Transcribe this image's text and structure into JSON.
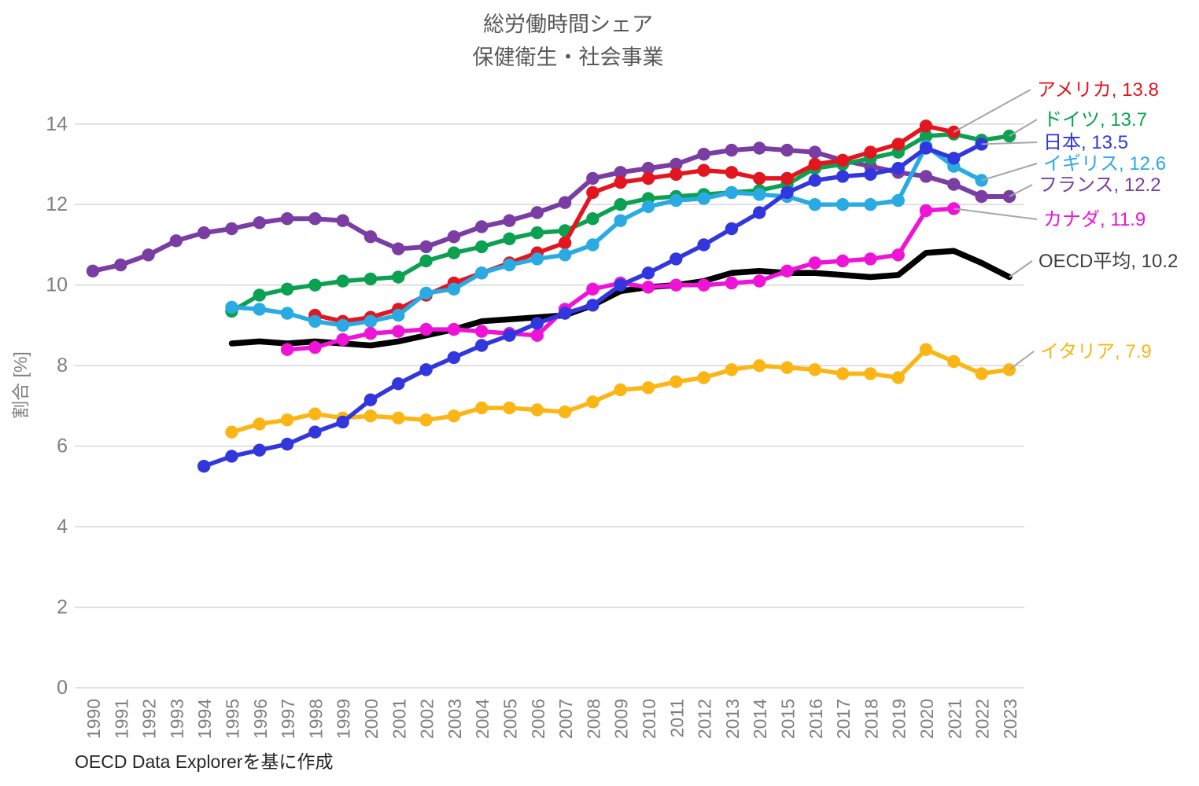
{
  "title": {
    "line1": "総労働時間シェア",
    "line2": "保健衛生・社会事業"
  },
  "footer": "OECD Data Explorerを基に作成",
  "y_axis": {
    "label": "割合 [%]",
    "ticks": [
      0,
      2,
      4,
      6,
      8,
      10,
      12,
      14
    ]
  },
  "x_axis": {
    "years": [
      1990,
      1991,
      1992,
      1993,
      1994,
      1995,
      1996,
      1997,
      1998,
      1999,
      2000,
      2001,
      2002,
      2003,
      2004,
      2005,
      2006,
      2007,
      2008,
      2009,
      2010,
      2011,
      2012,
      2013,
      2014,
      2015,
      2016,
      2017,
      2018,
      2019,
      2020,
      2021,
      2022,
      2023
    ]
  },
  "colors": {
    "grid": "#d9d9d9",
    "axis_text": "#7f7f7f",
    "title_text": "#595959",
    "footer_text": "#262626",
    "leader_line": "#a6a6a6"
  },
  "chart_data": {
    "type": "line",
    "title": "総労働時間シェア 保健衛生・社会事業",
    "ylabel": "割合 [%]",
    "ylim": [
      0,
      14
    ],
    "xlim": [
      1990,
      2023
    ],
    "grid": "horizontal",
    "legend_position": "right-callouts",
    "x": [
      1990,
      1991,
      1992,
      1993,
      1994,
      1995,
      1996,
      1997,
      1998,
      1999,
      2000,
      2001,
      2002,
      2003,
      2004,
      2005,
      2006,
      2007,
      2008,
      2009,
      2010,
      2011,
      2012,
      2013,
      2014,
      2015,
      2016,
      2017,
      2018,
      2019,
      2020,
      2021,
      2022,
      2023
    ],
    "series": [
      {
        "name": "アメリカ",
        "legend": "アメリカ, 13.8",
        "end_value": 13.8,
        "color": "#e3151f",
        "marker": true,
        "width": 5.5,
        "values": [
          null,
          null,
          null,
          null,
          null,
          null,
          null,
          null,
          9.25,
          9.1,
          9.2,
          9.4,
          9.75,
          10.05,
          10.3,
          10.55,
          10.8,
          11.05,
          12.3,
          12.55,
          12.65,
          12.75,
          12.85,
          12.8,
          12.65,
          12.65,
          13.0,
          13.1,
          13.3,
          13.5,
          13.95,
          13.8,
          null,
          null
        ]
      },
      {
        "name": "ドイツ",
        "legend": "ドイツ, 13.7",
        "end_value": 13.7,
        "color": "#0ba151",
        "marker": true,
        "width": 5.5,
        "values": [
          null,
          null,
          null,
          null,
          null,
          9.35,
          9.75,
          9.9,
          10.0,
          10.1,
          10.15,
          10.2,
          10.6,
          10.8,
          10.95,
          11.15,
          11.3,
          11.35,
          11.65,
          12.0,
          12.15,
          12.2,
          12.25,
          12.3,
          12.35,
          12.5,
          12.9,
          13.0,
          13.15,
          13.3,
          13.7,
          13.75,
          13.6,
          13.7
        ]
      },
      {
        "name": "日本",
        "legend": "日本, 13.5",
        "end_value": 13.5,
        "color": "#3137dd",
        "marker": true,
        "width": 5.5,
        "values": [
          null,
          null,
          null,
          null,
          5.5,
          5.75,
          5.9,
          6.05,
          6.35,
          6.6,
          7.15,
          7.55,
          7.9,
          8.2,
          8.5,
          8.75,
          9.05,
          9.3,
          9.5,
          10.0,
          10.3,
          10.65,
          11.0,
          11.4,
          11.8,
          12.3,
          12.6,
          12.7,
          12.75,
          12.9,
          13.4,
          13.15,
          13.5,
          null
        ]
      },
      {
        "name": "イギリス",
        "legend": "イギリス, 12.6",
        "end_value": 12.6,
        "color": "#2aaae2",
        "marker": true,
        "width": 5.5,
        "values": [
          null,
          null,
          null,
          null,
          null,
          9.45,
          9.4,
          9.3,
          9.1,
          9.0,
          9.1,
          9.25,
          9.8,
          9.9,
          10.3,
          10.5,
          10.65,
          10.75,
          11.0,
          11.6,
          11.95,
          12.1,
          12.15,
          12.3,
          12.25,
          12.2,
          12.0,
          12.0,
          12.0,
          12.1,
          13.45,
          12.95,
          12.6,
          null
        ]
      },
      {
        "name": "フランス",
        "legend": "フランス, 12.2",
        "end_value": 12.2,
        "color": "#7a3da3",
        "marker": true,
        "width": 6,
        "values": [
          10.35,
          10.5,
          10.75,
          11.1,
          11.3,
          11.4,
          11.55,
          11.65,
          11.65,
          11.6,
          11.2,
          10.9,
          10.95,
          11.2,
          11.45,
          11.6,
          11.8,
          12.05,
          12.65,
          12.8,
          12.9,
          13.0,
          13.25,
          13.35,
          13.4,
          13.35,
          13.3,
          13.1,
          12.95,
          12.8,
          12.7,
          12.5,
          12.2,
          12.2
        ]
      },
      {
        "name": "カナダ",
        "legend": "カナダ, 11.9",
        "end_value": 11.9,
        "color": "#ef13d7",
        "marker": true,
        "width": 5.5,
        "values": [
          null,
          null,
          null,
          null,
          null,
          null,
          null,
          8.4,
          8.45,
          8.65,
          8.8,
          8.85,
          8.9,
          8.9,
          8.85,
          8.8,
          8.75,
          9.4,
          9.9,
          10.05,
          9.95,
          10.0,
          10.0,
          10.05,
          10.1,
          10.35,
          10.55,
          10.6,
          10.65,
          10.75,
          11.85,
          11.9,
          null,
          null
        ]
      },
      {
        "name": "OECD平均",
        "legend": "OECD平均, 10.2",
        "end_value": 10.2,
        "color": "#000000",
        "label_color": "#404040",
        "marker": false,
        "width": 7.5,
        "values": [
          null,
          null,
          null,
          null,
          null,
          8.55,
          8.6,
          8.55,
          8.6,
          8.55,
          8.5,
          8.6,
          8.75,
          8.9,
          9.1,
          9.15,
          9.2,
          9.25,
          9.5,
          9.85,
          9.95,
          10.0,
          10.1,
          10.3,
          10.35,
          10.3,
          10.3,
          10.25,
          10.2,
          10.25,
          10.8,
          10.85,
          10.55,
          10.2
        ]
      },
      {
        "name": "イタリア",
        "legend": "イタリア, 7.9",
        "end_value": 7.9,
        "color": "#fbb615",
        "marker": true,
        "width": 5.5,
        "values": [
          null,
          null,
          null,
          null,
          null,
          6.35,
          6.55,
          6.65,
          6.8,
          6.7,
          6.75,
          6.7,
          6.65,
          6.75,
          6.95,
          6.95,
          6.9,
          6.85,
          7.1,
          7.4,
          7.45,
          7.6,
          7.7,
          7.9,
          8.0,
          7.95,
          7.9,
          7.8,
          7.8,
          7.7,
          8.4,
          8.1,
          7.8,
          7.9
        ]
      }
    ]
  }
}
